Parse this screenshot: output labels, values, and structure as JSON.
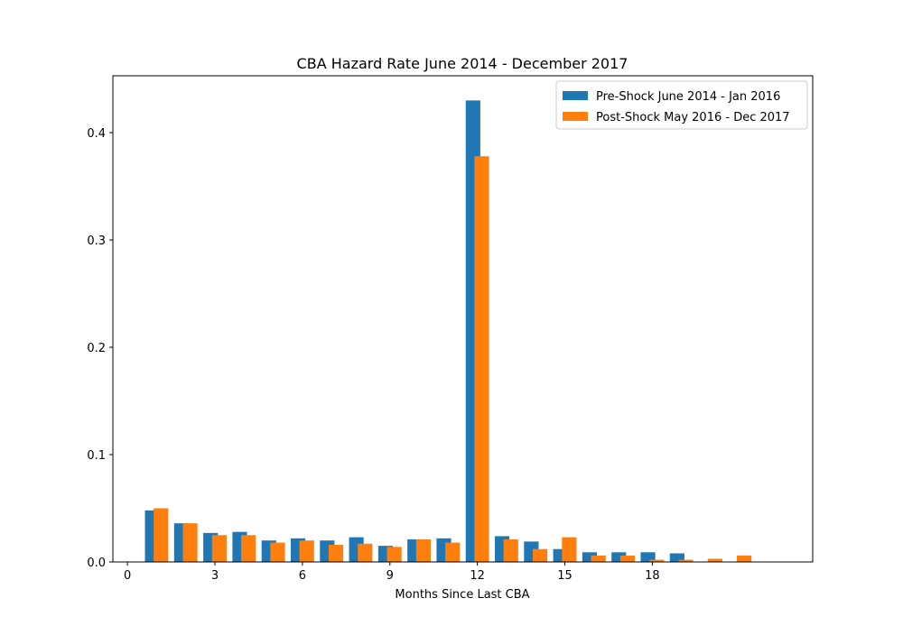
{
  "chart_data": {
    "type": "bar",
    "title": "CBA Hazard Rate June 2014 - December 2017",
    "xlabel": "Months Since Last CBA",
    "ylabel": "",
    "xlim": [
      -0.5,
      23.5
    ],
    "ylim": [
      0,
      0.453
    ],
    "x_ticks": [
      0,
      3,
      6,
      9,
      12,
      15,
      18
    ],
    "y_ticks": [
      0.0,
      0.1,
      0.2,
      0.3,
      0.4
    ],
    "y_tick_labels": [
      "0.0",
      "0.1",
      "0.2",
      "0.3",
      "0.4"
    ],
    "legend_position": "top-right",
    "grid": false,
    "series": [
      {
        "name": "Pre-Shock June 2014 - Jan 2016",
        "color": "#1f77b4",
        "x": [
          1,
          2,
          3,
          4,
          5,
          6,
          7,
          8,
          9,
          10,
          11,
          12,
          13,
          14,
          15,
          16,
          17,
          18,
          19
        ],
        "values": [
          0.048,
          0.036,
          0.027,
          0.028,
          0.02,
          0.022,
          0.02,
          0.023,
          0.015,
          0.021,
          0.022,
          0.43,
          0.024,
          0.019,
          0.012,
          0.009,
          0.009,
          0.009,
          0.008
        ]
      },
      {
        "name": "Post-Shock May 2016 - Dec 2017",
        "color": "#ff7f0e",
        "x": [
          1,
          2,
          3,
          4,
          5,
          6,
          7,
          8,
          9,
          10,
          11,
          12,
          13,
          14,
          15,
          16,
          17,
          18,
          19,
          20,
          21
        ],
        "values": [
          0.05,
          0.036,
          0.025,
          0.025,
          0.018,
          0.02,
          0.016,
          0.017,
          0.014,
          0.021,
          0.018,
          0.378,
          0.021,
          0.012,
          0.023,
          0.006,
          0.006,
          0.002,
          0.002,
          0.003,
          0.006
        ]
      }
    ]
  }
}
